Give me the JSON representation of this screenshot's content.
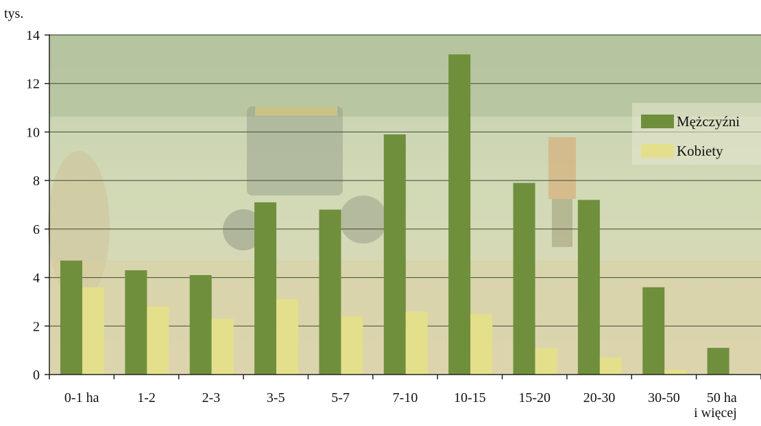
{
  "chart_data": {
    "type": "bar",
    "unit_label": "tys.",
    "categories": [
      "0-1 ha",
      "1-2",
      "2-3",
      "3-5",
      "5-7",
      "7-10",
      "10-15",
      "15-20",
      "20-30",
      "30-50",
      [
        "50 ha",
        "i więcej"
      ]
    ],
    "series": [
      {
        "name": "Mężczyźni",
        "color": "#6f8f3c",
        "values": [
          4.7,
          4.3,
          4.1,
          7.1,
          6.8,
          9.9,
          13.2,
          7.9,
          7.2,
          3.6,
          1.1
        ]
      },
      {
        "name": "Kobiety",
        "color": "#e4df8a",
        "values": [
          3.6,
          2.8,
          2.3,
          3.1,
          2.4,
          2.6,
          2.5,
          1.1,
          0.7,
          0.2,
          0.0
        ]
      }
    ],
    "ylim": [
      0,
      14
    ],
    "y_ticks": [
      "0",
      "2",
      "4",
      "6",
      "8",
      "10",
      "12",
      "14"
    ],
    "grid": true,
    "legend_position": "top-right"
  }
}
